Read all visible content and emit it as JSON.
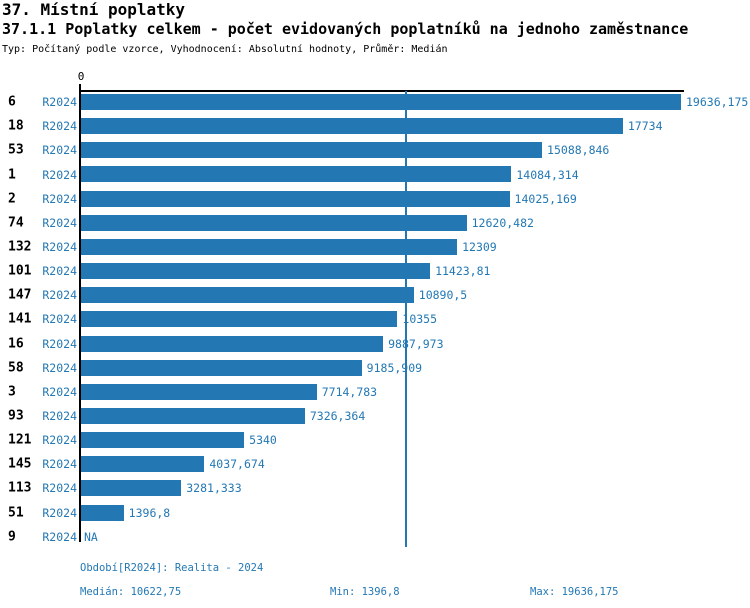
{
  "theme": {
    "accent": "#2378b4",
    "axis_color": "#000000",
    "background": "#ffffff"
  },
  "header": {
    "title": "37. Místní poplatky",
    "subtitle": "37.1.1 Poplatky celkem - počet evidovaných poplatníků na jednoho zaměstnance",
    "meta": "Typ: Počítaný podle vzorce, Vyhodnocení: Absolutní hodnoty, Průměr: Medián"
  },
  "chart_data": {
    "type": "bar",
    "orientation": "horizontal",
    "title": "37.1.1 Poplatky celkem - počet evidovaných poplatníků na jednoho zaměstnance",
    "series_label": "R2024",
    "categories": [
      "6",
      "18",
      "53",
      "1",
      "2",
      "74",
      "132",
      "101",
      "147",
      "141",
      "16",
      "58",
      "3",
      "93",
      "121",
      "145",
      "113",
      "51",
      "9"
    ],
    "values": [
      19636.175,
      17734,
      15088.846,
      14084.314,
      14025.169,
      12620.482,
      12309,
      11423.81,
      10890.5,
      10355,
      9887.973,
      9185.909,
      7714.783,
      7326.364,
      5340,
      4037.674,
      3281.333,
      1396.8,
      null
    ],
    "value_labels": [
      "19636,175",
      "17734",
      "15088,846",
      "14084,314",
      "14025,169",
      "12620,482",
      "12309",
      "11423,81",
      "10890,5",
      "10355",
      "9887,973",
      "9185,909",
      "7714,783",
      "7326,364",
      "5340",
      "4037,674",
      "3281,333",
      "1396,8",
      "NA"
    ],
    "x_tick_labels": [
      "0"
    ],
    "xlim": [
      0,
      19636.175
    ],
    "median_value": 10622.75,
    "min_value": 1396.8,
    "max_value": 19636.175,
    "bar_color": "#2378b4",
    "median_line_color": "#2378b4",
    "grid": false,
    "legend": false
  },
  "footer": {
    "period": "Období[R2024]: Realita - 2024",
    "median": "Medián: 10622,75",
    "min": "Min: 1396,8",
    "max": "Max: 19636,175"
  }
}
